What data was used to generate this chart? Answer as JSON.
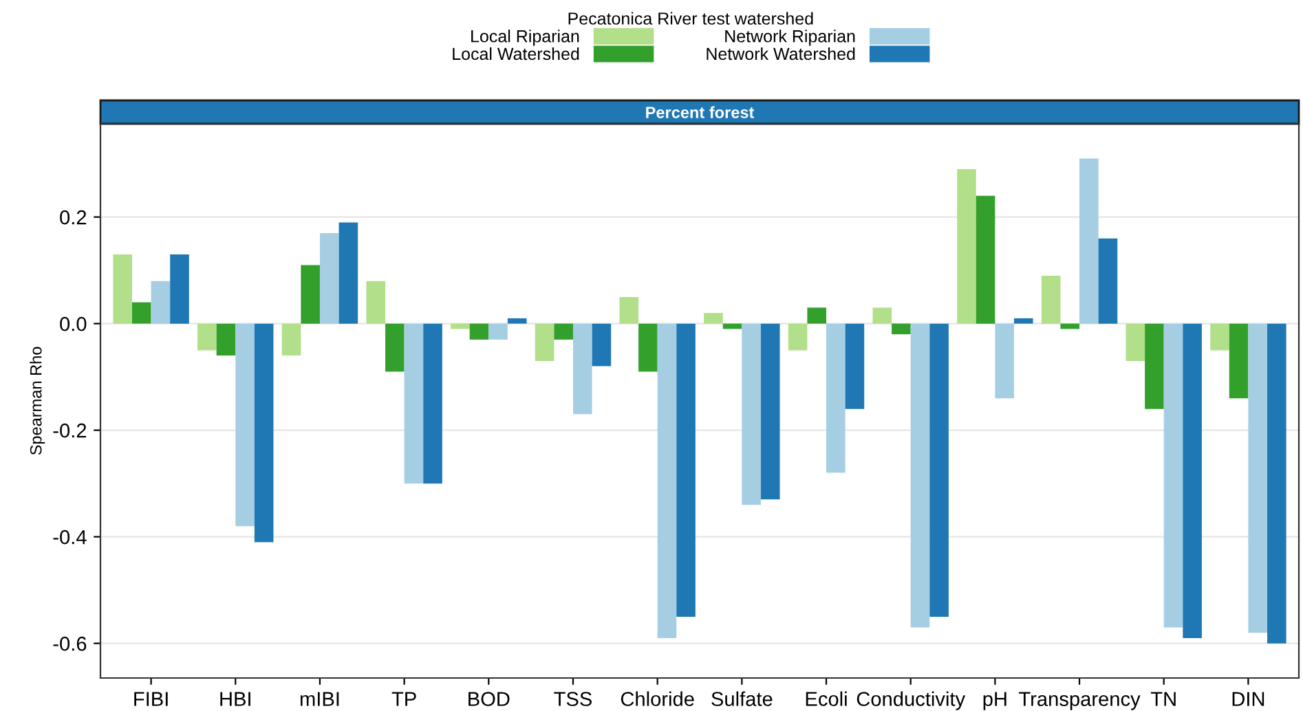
{
  "chart_data": {
    "type": "bar",
    "title": "Percent forest",
    "ylabel": "Spearman Rho",
    "legend_title": "Pecatonica River test watershed",
    "categories": [
      "FIBI",
      "HBI",
      "mIBI",
      "TP",
      "BOD",
      "TSS",
      "Chloride",
      "Sulfate",
      "Ecoli",
      "Conductivity",
      "pH",
      "Transparency",
      "TN",
      "DIN"
    ],
    "series": [
      {
        "name": "Local Riparian",
        "color": "#b2df8a",
        "values": [
          0.13,
          -0.05,
          -0.06,
          0.08,
          -0.01,
          -0.07,
          0.05,
          0.02,
          -0.05,
          0.03,
          0.29,
          0.09,
          -0.07,
          -0.05
        ]
      },
      {
        "name": "Local Watershed",
        "color": "#33a02c",
        "values": [
          0.04,
          -0.06,
          0.11,
          -0.09,
          -0.03,
          -0.03,
          -0.09,
          -0.01,
          0.03,
          -0.02,
          0.24,
          -0.01,
          -0.16,
          -0.14
        ]
      },
      {
        "name": "Network Riparian",
        "color": "#a6cee3",
        "values": [
          0.08,
          -0.38,
          0.17,
          -0.3,
          -0.03,
          -0.17,
          -0.59,
          -0.34,
          -0.28,
          -0.57,
          -0.14,
          0.31,
          -0.57,
          -0.58
        ]
      },
      {
        "name": "Network Watershed",
        "color": "#1f78b4",
        "values": [
          0.13,
          -0.41,
          0.19,
          -0.3,
          0.01,
          -0.08,
          -0.55,
          -0.33,
          -0.16,
          -0.55,
          0.01,
          0.16,
          -0.59,
          -0.6
        ]
      }
    ],
    "ylim": [
      -0.665,
      0.375
    ],
    "yticks": [
      {
        "value": -0.6,
        "label": "-0.6"
      },
      {
        "value": -0.4,
        "label": "-0.4"
      },
      {
        "value": -0.2,
        "label": "-0.2"
      },
      {
        "value": 0,
        "label": "0.0"
      },
      {
        "value": 0.2,
        "label": "0.2"
      }
    ],
    "grid": "y",
    "legend": "top"
  }
}
